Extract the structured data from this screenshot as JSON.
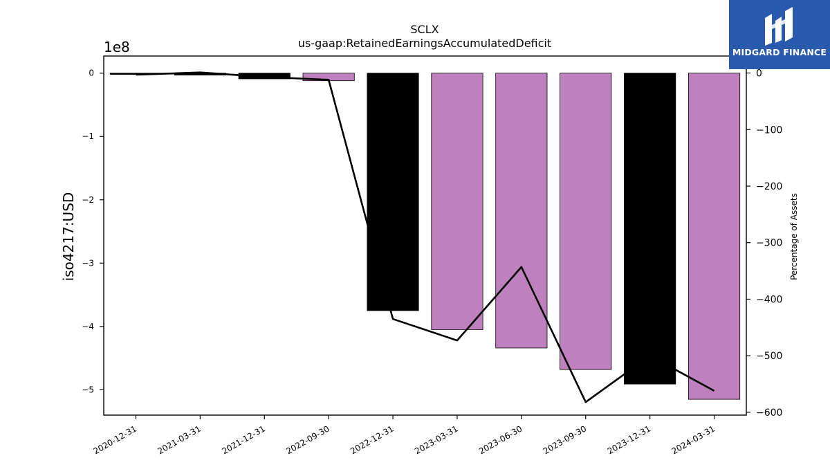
{
  "brand": {
    "name": "MIDGARD FINANCE",
    "bg_color": "#2a5aad"
  },
  "chart_data": {
    "type": "bar",
    "title": "SCLX",
    "subtitle": "us-gaap:RetainedEarningsAccumulatedDeficit",
    "ylabel": "iso4217:USD",
    "y2label": "Percentage of Assets",
    "y_offset_label": "1e8",
    "categories": [
      "2020-12-31",
      "2021-03-31",
      "2021-12-31",
      "2022-09-30",
      "2022-12-31",
      "2023-03-31",
      "2023-06-30",
      "2023-09-30",
      "2023-12-31",
      "2024-03-31"
    ],
    "values": [
      -0.02,
      -0.03,
      -0.09,
      -0.12,
      -3.75,
      -4.05,
      -4.34,
      -4.68,
      -4.91,
      -5.15
    ],
    "bar_colors": [
      "#000000",
      "#000000",
      "#000000",
      "#bf80be",
      "#000000",
      "#bf80be",
      "#bf80be",
      "#bf80be",
      "#000000",
      "#bf80be"
    ],
    "line_values": [
      -3,
      1,
      -7,
      -12,
      -435,
      -473,
      -343,
      -582,
      -500,
      -562
    ],
    "ylim": [
      -5.4,
      0.27
    ],
    "y2lim": [
      -605,
      30
    ],
    "yticks": [
      0,
      -1,
      -2,
      -3,
      -4,
      -5
    ],
    "ytick_labels": [
      "0",
      "−1",
      "−2",
      "−3",
      "−4",
      "−5"
    ],
    "y2ticks": [
      0,
      -100,
      -200,
      -300,
      -400,
      -500,
      -600
    ],
    "y2tick_labels": [
      "0",
      "−100",
      "−200",
      "−300",
      "−400",
      "−500",
      "−600"
    ],
    "grid": false
  }
}
